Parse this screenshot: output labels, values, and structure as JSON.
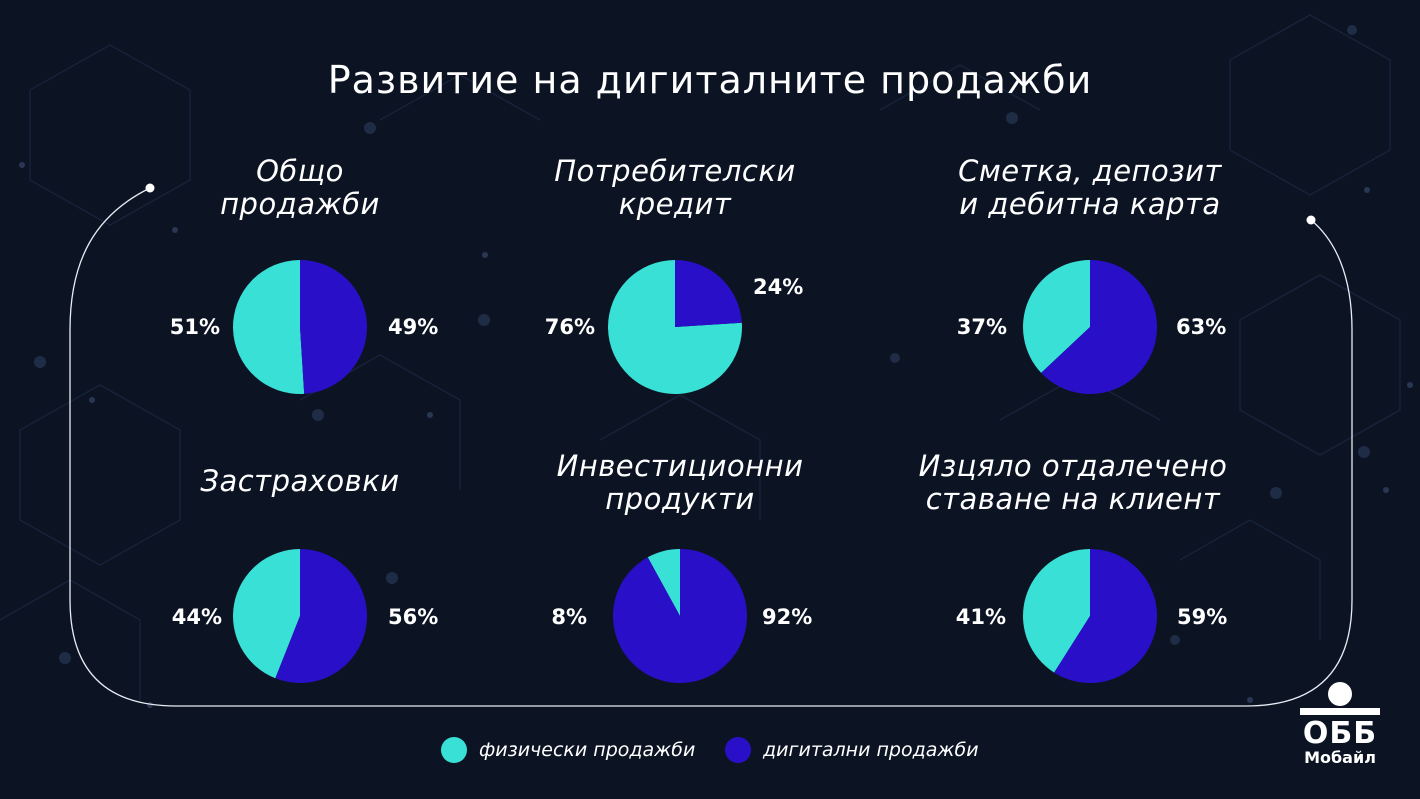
{
  "title": "Развитие на дигиталните продажби",
  "colors": {
    "background": "#0c1424",
    "physical": "#38e0d6",
    "digital": "#2a0fc8",
    "text": "#ffffff"
  },
  "legend": {
    "physical": "физически продажби",
    "digital": "дигитални продажби"
  },
  "logo": {
    "main": "ОББ",
    "sub": "Мобайл"
  },
  "chart_data": [
    {
      "type": "pie",
      "title": "Общо продажби",
      "title_lines": [
        "Общо",
        "продажби"
      ],
      "labels": [
        "физически продажби",
        "дигитални продажби"
      ],
      "values": [
        51,
        49
      ],
      "label_text": [
        "51%",
        "49%"
      ]
    },
    {
      "type": "pie",
      "title": "Потребителски кредит",
      "title_lines": [
        "Потребителски",
        "кредит"
      ],
      "labels": [
        "физически продажби",
        "дигитални продажби"
      ],
      "values": [
        76,
        24
      ],
      "label_text": [
        "76%",
        "24%"
      ]
    },
    {
      "type": "pie",
      "title": "Сметка, депозит и дебитна карта",
      "title_lines": [
        "Сметка, депозит",
        "и дебитна карта"
      ],
      "labels": [
        "физически продажби",
        "дигитални продажби"
      ],
      "values": [
        37,
        63
      ],
      "label_text": [
        "37%",
        "63%"
      ]
    },
    {
      "type": "pie",
      "title": "Застраховки",
      "title_lines": [
        "Застраховки"
      ],
      "labels": [
        "физически продажби",
        "дигитални продажби"
      ],
      "values": [
        44,
        56
      ],
      "label_text": [
        "44%",
        "56%"
      ]
    },
    {
      "type": "pie",
      "title": "Инвестиционни продукти",
      "title_lines": [
        "Инвестиционни",
        "продукти"
      ],
      "labels": [
        "физически продажби",
        "дигитални продажби"
      ],
      "values": [
        8,
        92
      ],
      "label_text": [
        "8%",
        "92%"
      ]
    },
    {
      "type": "pie",
      "title": "Изцяло отдалечено ставане на клиент",
      "title_lines": [
        "Изцяло отдалечено",
        "ставане на клиент"
      ],
      "labels": [
        "физически продажби",
        "дигитални продажби"
      ],
      "values": [
        41,
        59
      ],
      "label_text": [
        "41%",
        "59%"
      ]
    }
  ]
}
